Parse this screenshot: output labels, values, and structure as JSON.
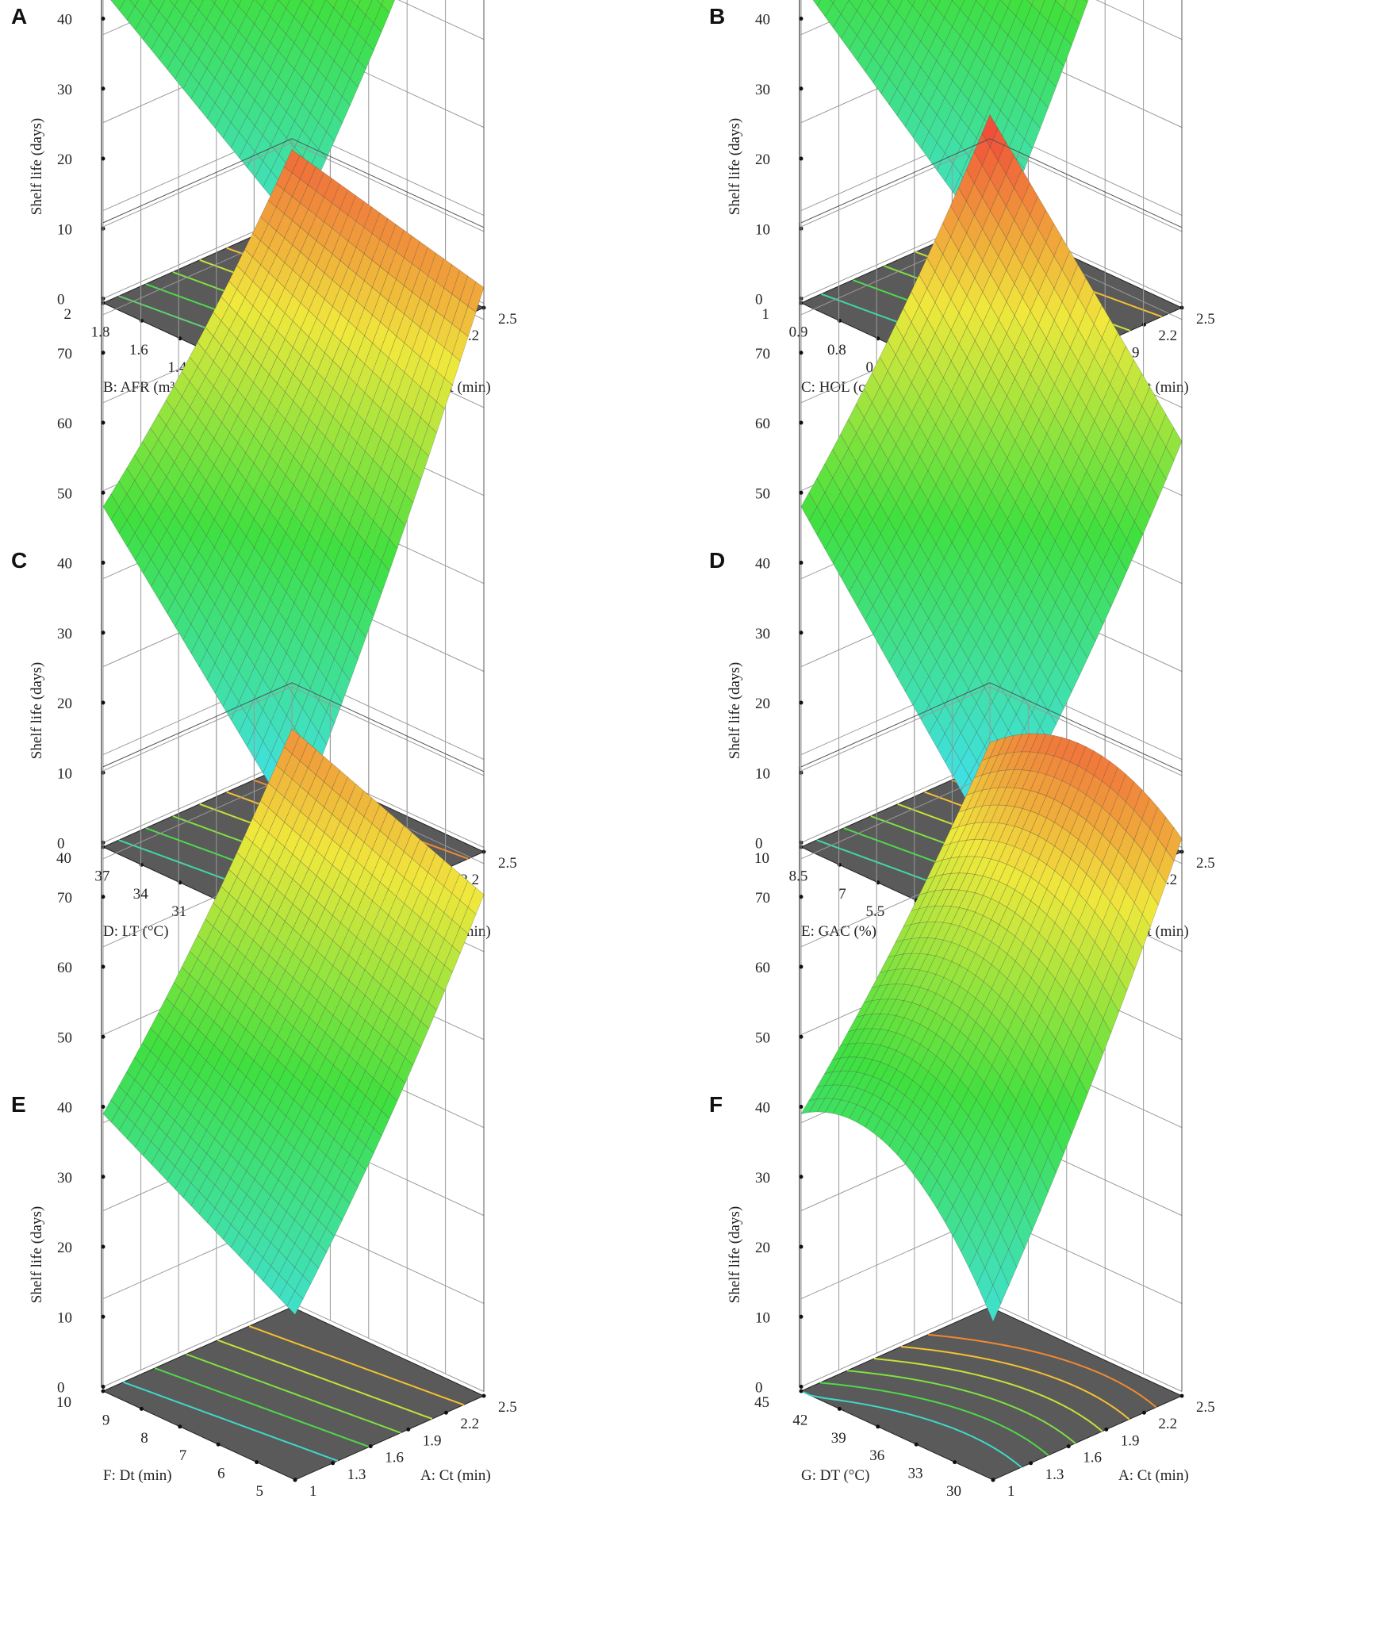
{
  "figure": {
    "zlabel": "Shelf life (days)",
    "z_ticks": [
      "70",
      "60",
      "50",
      "40",
      "30",
      "20",
      "10",
      "0"
    ],
    "colors": {
      "floor": "#5a5a5a",
      "grid": "#9a9a9a",
      "low": "#40e0e0",
      "mid": "#3fe03f",
      "high": "#f0503a"
    }
  },
  "chart_data": [
    {
      "type": "surface",
      "panel": "A",
      "title": "",
      "xlabel": "A: Ct (min)",
      "x_ticks": [
        "1",
        "1.3",
        "1.6",
        "1.9",
        "2.2",
        "2.5"
      ],
      "xlim": [
        1,
        2.5
      ],
      "ylabel": "B: AFR (m³/h)",
      "y_ticks": [
        "1",
        "1.2",
        "1.4",
        "1.6",
        "1.8",
        "2"
      ],
      "ylim": [
        1,
        2
      ],
      "zlabel": "Shelf life (days)",
      "zlim": [
        0,
        70
      ],
      "corners": {
        "x_min_y_min": 3,
        "x_max_y_min": 56,
        "x_min_y_max": 24,
        "x_max_y_max": 66
      },
      "contour_colors": [
        "#5fd06f",
        "#4fd84a",
        "#7fe040",
        "#c8e03a",
        "#f5c030",
        "#f08a30"
      ]
    },
    {
      "type": "surface",
      "panel": "B",
      "title": "",
      "xlabel": "A: Ct (min)",
      "x_ticks": [
        "1",
        "1.3",
        "1.6",
        "1.9",
        "2.2",
        "2.5"
      ],
      "xlim": [
        1,
        2.5
      ],
      "ylabel": "C: HOL (cm)",
      "y_ticks": [
        "0.5",
        "0.6",
        "0.7",
        "0.8",
        "0.9",
        "1"
      ],
      "ylim": [
        0.5,
        1
      ],
      "zlabel": "Shelf life (days)",
      "zlim": [
        0,
        70
      ],
      "corners": {
        "x_min_y_min": 0,
        "x_max_y_min": 62,
        "x_min_y_max": 25,
        "x_max_y_max": 63
      },
      "contour_colors": [
        "#40d8a0",
        "#4fd84a",
        "#7fe040",
        "#c8e03a",
        "#f5c030"
      ]
    },
    {
      "type": "surface",
      "panel": "C",
      "title": "",
      "xlabel": "A: Ct (min)",
      "x_ticks": [
        "1",
        "1.3",
        "1.6",
        "1.9",
        "2.2",
        "2.5"
      ],
      "xlim": [
        1,
        2.5
      ],
      "ylabel": "D: LT (°C)",
      "y_ticks": [
        "25",
        "28",
        "31",
        "34",
        "37",
        "40"
      ],
      "ylim": [
        25,
        40
      ],
      "zlabel": "Shelf life (days)",
      "zlim": [
        0,
        70
      ],
      "corners": {
        "x_min_y_min": -5,
        "x_max_y_min": 60,
        "x_min_y_max": 28,
        "x_max_y_max": 67
      },
      "contour_colors": [
        "#40d8a0",
        "#4fd84a",
        "#7fe040",
        "#c8e03a",
        "#f5c030",
        "#f08a30"
      ]
    },
    {
      "type": "surface",
      "panel": "D",
      "title": "",
      "xlabel": "A: Ct (min)",
      "x_ticks": [
        "1",
        "1.3",
        "1.6",
        "1.9",
        "2.2",
        "2.5"
      ],
      "xlim": [
        1,
        2.5
      ],
      "ylabel": "E: GAC (%)",
      "y_ticks": [
        "2.5",
        "4",
        "5.5",
        "7",
        "8.5",
        "10"
      ],
      "ylim": [
        2.5,
        10
      ],
      "zlabel": "Shelf life (days)",
      "zlim": [
        0,
        70
      ],
      "corners": {
        "x_min_y_min": -8,
        "x_max_y_min": 38,
        "x_min_y_max": 28,
        "x_max_y_max": 72
      },
      "contour_colors": [
        "#40d8a0",
        "#4fd84a",
        "#7fe040",
        "#c8e03a",
        "#f5c030",
        "#f08a30"
      ]
    },
    {
      "type": "surface",
      "panel": "E",
      "title": "",
      "xlabel": "A: Ct (min)",
      "x_ticks": [
        "1",
        "1.3",
        "1.6",
        "1.9",
        "2.2",
        "2.5"
      ],
      "xlim": [
        1,
        2.5
      ],
      "ylabel": "F: Dt (min)",
      "y_ticks": [
        "5",
        "6",
        "7",
        "8",
        "9",
        "10"
      ],
      "ylim": [
        5,
        10
      ],
      "zlabel": "Shelf life (days)",
      "zlim": [
        0,
        70
      ],
      "corners": {
        "x_min_y_min": 3,
        "x_max_y_min": 51,
        "x_min_y_max": 19,
        "x_max_y_max": 62
      },
      "contour_colors": [
        "#40d8c8",
        "#4fd84a",
        "#7fe040",
        "#c8e03a",
        "#f5c030"
      ]
    },
    {
      "type": "surface",
      "panel": "F",
      "title": "",
      "xlabel": "A: Ct (min)",
      "x_ticks": [
        "1",
        "1.3",
        "1.6",
        "1.9",
        "2.2",
        "2.5"
      ],
      "xlim": [
        1,
        2.5
      ],
      "ylabel": "G: DT (°C)",
      "y_ticks": [
        "30",
        "33",
        "36",
        "39",
        "42",
        "45"
      ],
      "ylim": [
        30,
        45
      ],
      "zlabel": "Shelf life (days)",
      "zlim": [
        0,
        70
      ],
      "corners": {
        "x_min_y_min": 2,
        "x_max_y_min": 59,
        "x_min_y_max": 19,
        "x_max_y_max": 60
      },
      "curvature": 9,
      "contour_colors": [
        "#40d8c8",
        "#4fd84a",
        "#7fe040",
        "#c8e03a",
        "#f5c030",
        "#f08a30"
      ]
    }
  ]
}
